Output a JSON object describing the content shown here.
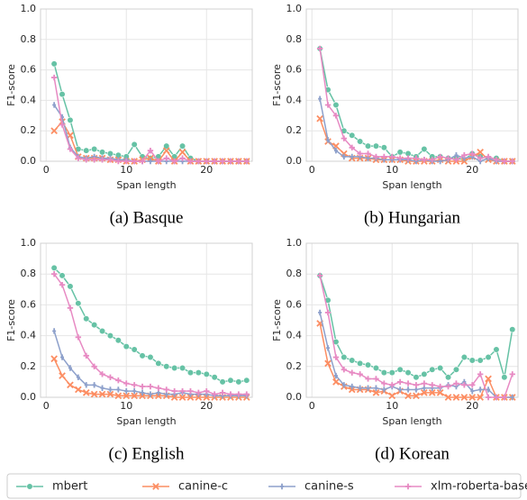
{
  "chart_data": [
    {
      "type": "line",
      "caption": "(a) Basque",
      "xlabel": "Span length",
      "ylabel": "F1-score",
      "x": [
        1,
        2,
        3,
        4,
        5,
        6,
        7,
        8,
        9,
        10,
        11,
        12,
        13,
        14,
        15,
        16,
        17,
        18,
        19,
        20,
        21,
        22,
        23,
        24,
        25
      ],
      "xlim": [
        -0.7,
        25.7
      ],
      "ylim": [
        0,
        1
      ],
      "xticks": [
        0,
        10,
        20
      ],
      "yticks": [
        {
          "value": 0,
          "label": "0.0"
        },
        {
          "value": 0.2,
          "label": "0.2"
        },
        {
          "value": 0.4,
          "label": "0.4"
        },
        {
          "value": 0.6,
          "label": "0.6"
        },
        {
          "value": 0.8,
          "label": "0.8"
        },
        {
          "value": 1,
          "label": "1.0"
        }
      ],
      "grid": true,
      "series": [
        {
          "name": "mbert",
          "color": "#66c2a5",
          "marker": "o",
          "values": [
            0.64,
            0.44,
            0.27,
            0.08,
            0.07,
            0.08,
            0.06,
            0.05,
            0.04,
            0.03,
            0.11,
            0.03,
            0.02,
            0.03,
            0.1,
            0.03,
            0.1,
            0.02,
            0,
            0,
            0,
            0,
            0,
            0,
            0
          ]
        },
        {
          "name": "canine-c",
          "color": "#fc8d62",
          "marker": "x",
          "values": [
            0.2,
            0.26,
            0.17,
            0.03,
            0.02,
            0.02,
            0.02,
            0.01,
            0.01,
            0,
            0,
            0.01,
            0.02,
            0,
            0.07,
            0,
            0.06,
            0,
            0,
            0,
            0,
            0,
            0,
            0,
            0
          ]
        },
        {
          "name": "canine-s",
          "color": "#8da0cb",
          "marker": "|",
          "values": [
            0.37,
            0.29,
            0.09,
            0.03,
            0.02,
            0.03,
            0.02,
            0.02,
            0.01,
            0.01,
            0,
            0,
            0,
            0,
            0,
            0,
            0,
            0,
            0,
            0,
            0,
            0,
            0,
            0,
            0
          ]
        },
        {
          "name": "xlm-roberta-base",
          "color": "#e78ac3",
          "marker": "+",
          "values": [
            0.55,
            0.24,
            0.08,
            0.02,
            0.01,
            0.01,
            0.01,
            0.01,
            0,
            0,
            0,
            0,
            0.07,
            0,
            0.02,
            0,
            0.02,
            0,
            0,
            0,
            0,
            0,
            0,
            0,
            0
          ]
        }
      ]
    },
    {
      "type": "line",
      "caption": "(b) Hungarian",
      "xlabel": "Span length",
      "ylabel": "F1-score",
      "x": [
        1,
        2,
        3,
        4,
        5,
        6,
        7,
        8,
        9,
        10,
        11,
        12,
        13,
        14,
        15,
        16,
        17,
        18,
        19,
        20,
        21,
        22,
        23,
        24,
        25
      ],
      "xlim": [
        -0.7,
        25.7
      ],
      "ylim": [
        0,
        1
      ],
      "xticks": [
        0,
        10,
        20
      ],
      "yticks": [
        {
          "value": 0,
          "label": "0.0"
        },
        {
          "value": 0.2,
          "label": "0.2"
        },
        {
          "value": 0.4,
          "label": "0.4"
        },
        {
          "value": 0.6,
          "label": "0.6"
        },
        {
          "value": 0.8,
          "label": "0.8"
        },
        {
          "value": 1,
          "label": "1.0"
        }
      ],
      "grid": true,
      "series": [
        {
          "name": "mbert",
          "color": "#66c2a5",
          "marker": "o",
          "values": [
            0.74,
            0.47,
            0.37,
            0.2,
            0.17,
            0.13,
            0.1,
            0.1,
            0.09,
            0.03,
            0.06,
            0.05,
            0.03,
            0.08,
            0.03,
            0.03,
            0.02,
            0.02,
            0.01,
            0.05,
            0.03,
            0.02,
            0.02,
            0,
            0
          ]
        },
        {
          "name": "canine-c",
          "color": "#fc8d62",
          "marker": "x",
          "values": [
            0.28,
            0.13,
            0.1,
            0.05,
            0.02,
            0.02,
            0.02,
            0.01,
            0.01,
            0.01,
            0.01,
            0,
            0,
            0,
            0,
            0.01,
            0,
            0,
            0,
            0.03,
            0.06,
            0.01,
            0,
            0,
            0
          ]
        },
        {
          "name": "canine-s",
          "color": "#8da0cb",
          "marker": "|",
          "values": [
            0.41,
            0.14,
            0.07,
            0.03,
            0.03,
            0.03,
            0.02,
            0.02,
            0.01,
            0.01,
            0.01,
            0.01,
            0,
            0.01,
            0,
            0,
            0.01,
            0.04,
            0.02,
            0.03,
            0,
            0.02,
            0,
            0,
            0
          ]
        },
        {
          "name": "xlm-roberta-base",
          "color": "#e78ac3",
          "marker": "+",
          "values": [
            0.74,
            0.37,
            0.3,
            0.15,
            0.09,
            0.05,
            0.05,
            0.03,
            0.03,
            0.03,
            0.02,
            0.02,
            0.02,
            0.01,
            0.01,
            0.03,
            0.02,
            0.01,
            0.04,
            0.05,
            0.02,
            0.03,
            0.01,
            0,
            0
          ]
        }
      ]
    },
    {
      "type": "line",
      "caption": "(c) English",
      "xlabel": "Span length",
      "ylabel": "F1-score",
      "x": [
        1,
        2,
        3,
        4,
        5,
        6,
        7,
        8,
        9,
        10,
        11,
        12,
        13,
        14,
        15,
        16,
        17,
        18,
        19,
        20,
        21,
        22,
        23,
        24,
        25
      ],
      "xlim": [
        -0.7,
        25.7
      ],
      "ylim": [
        0,
        1
      ],
      "xticks": [
        0,
        10,
        20
      ],
      "yticks": [
        {
          "value": 0,
          "label": "0.0"
        },
        {
          "value": 0.2,
          "label": "0.2"
        },
        {
          "value": 0.4,
          "label": "0.4"
        },
        {
          "value": 0.6,
          "label": "0.6"
        },
        {
          "value": 0.8,
          "label": "0.8"
        },
        {
          "value": 1,
          "label": "1.0"
        }
      ],
      "grid": true,
      "series": [
        {
          "name": "mbert",
          "color": "#66c2a5",
          "marker": "o",
          "values": [
            0.84,
            0.79,
            0.72,
            0.61,
            0.51,
            0.47,
            0.43,
            0.4,
            0.37,
            0.33,
            0.31,
            0.27,
            0.26,
            0.22,
            0.2,
            0.19,
            0.19,
            0.16,
            0.16,
            0.15,
            0.13,
            0.1,
            0.11,
            0.1,
            0.11
          ]
        },
        {
          "name": "canine-c",
          "color": "#fc8d62",
          "marker": "x",
          "values": [
            0.25,
            0.14,
            0.08,
            0.05,
            0.03,
            0.02,
            0.02,
            0.02,
            0.01,
            0.01,
            0.01,
            0.01,
            0.01,
            0.01,
            0.01,
            0,
            0,
            0,
            0,
            0,
            0,
            0,
            0,
            0,
            0
          ]
        },
        {
          "name": "canine-s",
          "color": "#8da0cb",
          "marker": "|",
          "values": [
            0.43,
            0.26,
            0.19,
            0.13,
            0.08,
            0.08,
            0.06,
            0.05,
            0.05,
            0.04,
            0.04,
            0.03,
            0.02,
            0.03,
            0.02,
            0.02,
            0.03,
            0.02,
            0.02,
            0.02,
            0.01,
            0.01,
            0.01,
            0.01,
            0.01
          ]
        },
        {
          "name": "xlm-roberta-base",
          "color": "#e78ac3",
          "marker": "+",
          "values": [
            0.8,
            0.73,
            0.58,
            0.39,
            0.27,
            0.2,
            0.15,
            0.13,
            0.11,
            0.09,
            0.08,
            0.07,
            0.07,
            0.06,
            0.05,
            0.04,
            0.04,
            0.04,
            0.03,
            0.04,
            0.02,
            0.03,
            0.02,
            0.02,
            0.02
          ]
        }
      ]
    },
    {
      "type": "line",
      "caption": "(d) Korean",
      "xlabel": "Span length",
      "ylabel": "F1-score",
      "x": [
        1,
        2,
        3,
        4,
        5,
        6,
        7,
        8,
        9,
        10,
        11,
        12,
        13,
        14,
        15,
        16,
        17,
        18,
        19,
        20,
        21,
        22,
        23,
        24,
        25
      ],
      "xlim": [
        -0.7,
        25.7
      ],
      "ylim": [
        0,
        1
      ],
      "xticks": [
        0,
        10,
        20
      ],
      "yticks": [
        {
          "value": 0,
          "label": "0.0"
        },
        {
          "value": 0.2,
          "label": "0.2"
        },
        {
          "value": 0.4,
          "label": "0.4"
        },
        {
          "value": 0.6,
          "label": "0.6"
        },
        {
          "value": 0.8,
          "label": "0.8"
        },
        {
          "value": 1,
          "label": "1.0"
        }
      ],
      "grid": true,
      "series": [
        {
          "name": "mbert",
          "color": "#66c2a5",
          "marker": "o",
          "values": [
            0.79,
            0.63,
            0.36,
            0.26,
            0.24,
            0.22,
            0.21,
            0.19,
            0.16,
            0.16,
            0.18,
            0.16,
            0.13,
            0.15,
            0.18,
            0.19,
            0.13,
            0.18,
            0.26,
            0.24,
            0.24,
            0.26,
            0.31,
            0.13,
            0.44
          ]
        },
        {
          "name": "canine-c",
          "color": "#fc8d62",
          "marker": "x",
          "values": [
            0.48,
            0.22,
            0.1,
            0.07,
            0.05,
            0.05,
            0.05,
            0.03,
            0.04,
            0.01,
            0.04,
            0.01,
            0.01,
            0.03,
            0.03,
            0.03,
            0,
            0,
            0,
            0,
            0,
            0.12,
            0,
            0,
            0
          ]
        },
        {
          "name": "canine-s",
          "color": "#8da0cb",
          "marker": "|",
          "values": [
            0.55,
            0.32,
            0.14,
            0.08,
            0.07,
            0.06,
            0.06,
            0.06,
            0.05,
            0.07,
            0.05,
            0.05,
            0.05,
            0.06,
            0.06,
            0.06,
            0.08,
            0.07,
            0.1,
            0.04,
            0.05,
            0.05,
            0,
            0,
            0
          ]
        },
        {
          "name": "xlm-roberta-base",
          "color": "#e78ac3",
          "marker": "+",
          "values": [
            0.79,
            0.55,
            0.26,
            0.18,
            0.16,
            0.15,
            0.12,
            0.12,
            0.09,
            0.08,
            0.1,
            0.09,
            0.08,
            0.09,
            0.08,
            0.07,
            0.07,
            0.09,
            0.08,
            0.08,
            0.15,
            0,
            0,
            0,
            0.15
          ]
        }
      ]
    }
  ]
}
